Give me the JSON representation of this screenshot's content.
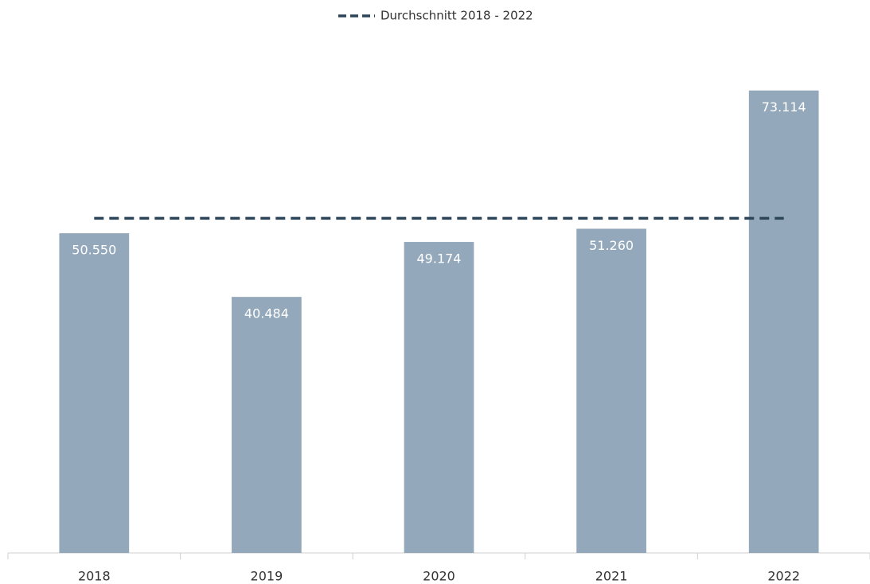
{
  "chart_data": {
    "type": "bar",
    "categories": [
      "2018",
      "2019",
      "2020",
      "2021",
      "2022"
    ],
    "series": [
      {
        "values": [
          50550,
          40484,
          49174,
          51260,
          73114
        ],
        "value_labels": [
          "50.550",
          "40.484",
          "49.174",
          "51.260",
          "73.114"
        ],
        "color": "#94a8bb"
      },
      {
        "name": "Durchschnitt 2018 - 2022",
        "type": "line",
        "dashed": true,
        "color": "#2d4559",
        "values": [
          52916.4,
          52916.4,
          52916.4,
          52916.4,
          52916.4
        ]
      }
    ],
    "ylim": [
      0,
      80000
    ],
    "legend": "top"
  }
}
